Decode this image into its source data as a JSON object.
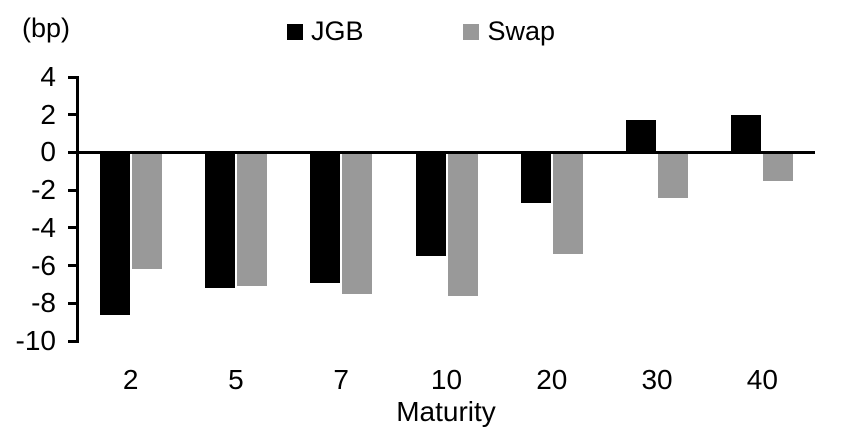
{
  "chart_data": {
    "type": "bar",
    "unit_label": "(bp)",
    "xlabel": "Maturity",
    "categories": [
      "2",
      "5",
      "7",
      "10",
      "20",
      "30",
      "40"
    ],
    "series": [
      {
        "name": "JGB",
        "color": "#000000",
        "values": [
          -8.6,
          -7.2,
          -6.9,
          -5.5,
          -2.7,
          1.7,
          2.0
        ]
      },
      {
        "name": "Swap",
        "color": "#999999",
        "values": [
          -6.2,
          -7.1,
          -7.5,
          -7.6,
          -5.4,
          -2.4,
          -1.5
        ]
      }
    ],
    "yticks": [
      4,
      2,
      0,
      -2,
      -4,
      -6,
      -8,
      -10
    ],
    "ylim": [
      -10,
      4
    ],
    "grid": false,
    "legend_position": "top-center",
    "axis_color": "#000000"
  }
}
